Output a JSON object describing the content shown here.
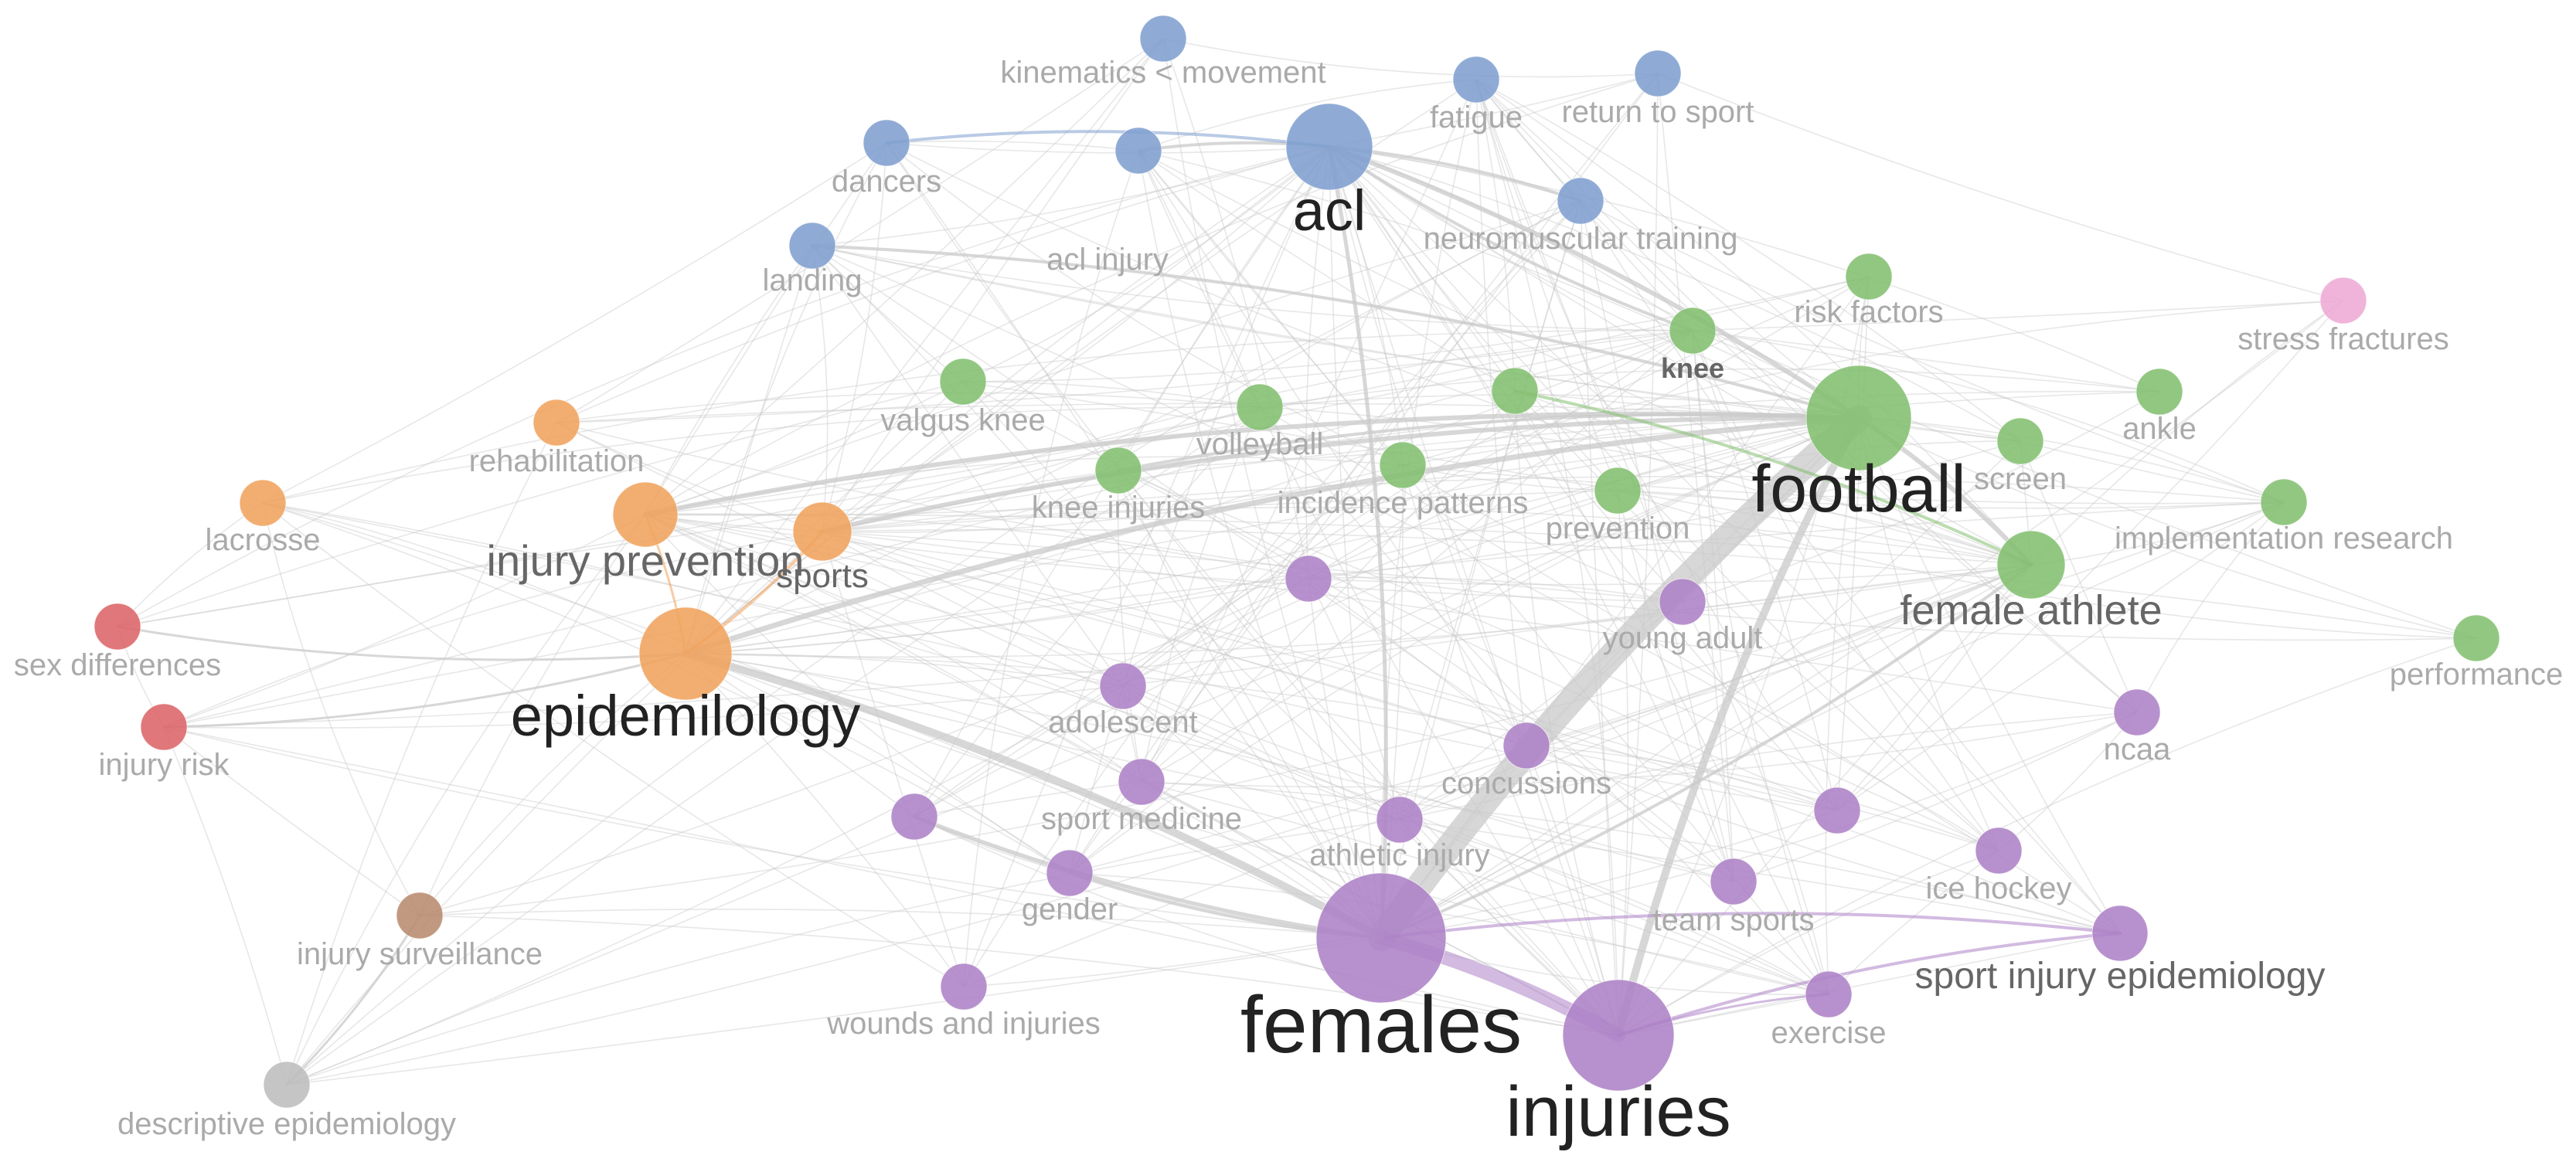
{
  "colors": {
    "blue": "#7f9fcf",
    "green": "#83bf70",
    "orange": "#f0a35d",
    "purple": "#ad82c6",
    "red": "#dc6468",
    "brown": "#b88a6e",
    "gray": "#bdbdbd",
    "pink": "#eeaad6",
    "edge": "#c9c9c9",
    "label_dark": "#222222",
    "label_mid": "#666666",
    "label_light": "#aaaaaa"
  },
  "nodes": [
    {
      "id": "acl",
      "label": "acl",
      "cluster": "blue"
    },
    {
      "id": "kinematics",
      "label": "kinematics < movement",
      "cluster": "blue"
    },
    {
      "id": "fatigue",
      "label": "fatigue",
      "cluster": "blue"
    },
    {
      "id": "return_to_sport",
      "label": "return to sport",
      "cluster": "blue"
    },
    {
      "id": "dancers",
      "label": "dancers",
      "cluster": "blue"
    },
    {
      "id": "acl_injury",
      "label": "acl injury",
      "cluster": "blue"
    },
    {
      "id": "landing",
      "label": "landing",
      "cluster": "blue"
    },
    {
      "id": "neuromuscular",
      "label": "neuromuscular training",
      "cluster": "blue"
    },
    {
      "id": "football",
      "label": "football",
      "cluster": "green"
    },
    {
      "id": "risk_factors",
      "label": "risk factors",
      "cluster": "green"
    },
    {
      "id": "knee",
      "label": "knee",
      "cluster": "green"
    },
    {
      "id": "valgus_knee",
      "label": "valgus knee",
      "cluster": "green"
    },
    {
      "id": "volleyball",
      "label": "volleyball",
      "cluster": "green"
    },
    {
      "id": "knee_injuries",
      "label": "knee injuries",
      "cluster": "green"
    },
    {
      "id": "incidence_patterns",
      "label": "incidence patterns",
      "cluster": "green"
    },
    {
      "id": "prevention",
      "label": "prevention",
      "cluster": "green"
    },
    {
      "id": "screen",
      "label": "screen",
      "cluster": "green"
    },
    {
      "id": "ankle",
      "label": "ankle",
      "cluster": "green"
    },
    {
      "id": "implementation",
      "label": "implementation research",
      "cluster": "green"
    },
    {
      "id": "female_athlete",
      "label": "female athlete",
      "cluster": "green"
    },
    {
      "id": "performance",
      "label": "performance",
      "cluster": "green"
    },
    {
      "id": "green_unlabeled",
      "label": "",
      "cluster": "green"
    },
    {
      "id": "stress_fractures",
      "label": "stress fractures",
      "cluster": "pink"
    },
    {
      "id": "epidemiology",
      "label": "epidemilology",
      "cluster": "orange"
    },
    {
      "id": "injury_prevention",
      "label": "injury prevention",
      "cluster": "orange"
    },
    {
      "id": "sports",
      "label": "sports",
      "cluster": "orange"
    },
    {
      "id": "rehabilitation",
      "label": "rehabilitation",
      "cluster": "orange"
    },
    {
      "id": "lacrosse",
      "label": "lacrosse",
      "cluster": "orange"
    },
    {
      "id": "sex_differences",
      "label": "sex differences",
      "cluster": "red"
    },
    {
      "id": "injury_risk",
      "label": "injury risk",
      "cluster": "red"
    },
    {
      "id": "injury_surveillance",
      "label": "injury surveillance",
      "cluster": "brown"
    },
    {
      "id": "descriptive_epi",
      "label": "descriptive epidemiology",
      "cluster": "gray"
    },
    {
      "id": "females",
      "label": "females",
      "cluster": "purple"
    },
    {
      "id": "injuries",
      "label": "injuries",
      "cluster": "purple"
    },
    {
      "id": "young_adult",
      "label": "young adult",
      "cluster": "purple"
    },
    {
      "id": "adolescent",
      "label": "adolescent",
      "cluster": "purple"
    },
    {
      "id": "concussions",
      "label": "concussions",
      "cluster": "purple"
    },
    {
      "id": "ncaa",
      "label": "ncaa",
      "cluster": "purple"
    },
    {
      "id": "sport_medicine",
      "label": "sport medicine",
      "cluster": "purple"
    },
    {
      "id": "athletic_injury",
      "label": "athletic injury",
      "cluster": "purple"
    },
    {
      "id": "gender",
      "label": "gender",
      "cluster": "purple"
    },
    {
      "id": "team_sports",
      "label": "team sports",
      "cluster": "purple"
    },
    {
      "id": "ice_hockey",
      "label": "ice hockey",
      "cluster": "purple"
    },
    {
      "id": "sport_injury_epi",
      "label": "sport injury epidemiology",
      "cluster": "purple"
    },
    {
      "id": "exercise",
      "label": "exercise",
      "cluster": "purple"
    },
    {
      "id": "wounds",
      "label": "wounds and injuries",
      "cluster": "purple"
    },
    {
      "id": "purple_unlabeled_1",
      "label": "",
      "cluster": "purple"
    },
    {
      "id": "purple_unlabeled_2",
      "label": "",
      "cluster": "purple"
    },
    {
      "id": "purple_unlabeled_3",
      "label": "",
      "cluster": "purple"
    }
  ]
}
